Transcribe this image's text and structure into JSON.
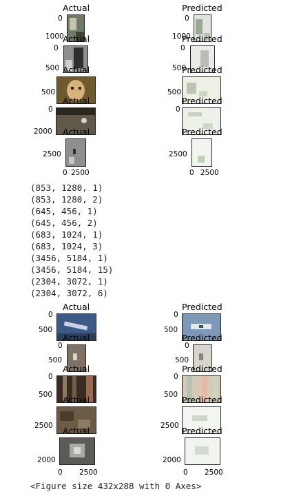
{
  "panels": {
    "actual": "Actual",
    "predicted": "Predicted"
  },
  "group1_ticks": {
    "r0_y": "0",
    "r0_y2": "1000",
    "r1_y": "0",
    "r1_y2": "500",
    "r2_y": "500",
    "r3_y": "0",
    "r3_y2": "2000",
    "r4_y": "2500",
    "x0": "0",
    "x1": "2500"
  },
  "output_lines": [
    "(853, 1280, 1)",
    "(853, 1280, 2)",
    "(645, 456, 1)",
    "(645, 456, 2)",
    "(683, 1024, 1)",
    "(683, 1024, 3)",
    "(3456, 5184, 1)",
    "(3456, 5184, 15)",
    "(2304, 3072, 1)",
    "(2304, 3072, 6)"
  ],
  "group2_ticks": {
    "r0_y": "0",
    "r0_y2": "500",
    "r1_y": "0",
    "r1_y2": "500",
    "r2_y": "0",
    "r2_y2": "500",
    "r3_y": "2500",
    "r4_y": "2000",
    "x0": "0",
    "x1": "2500"
  },
  "footer": "<Figure size 432x288 with 0 Axes>"
}
